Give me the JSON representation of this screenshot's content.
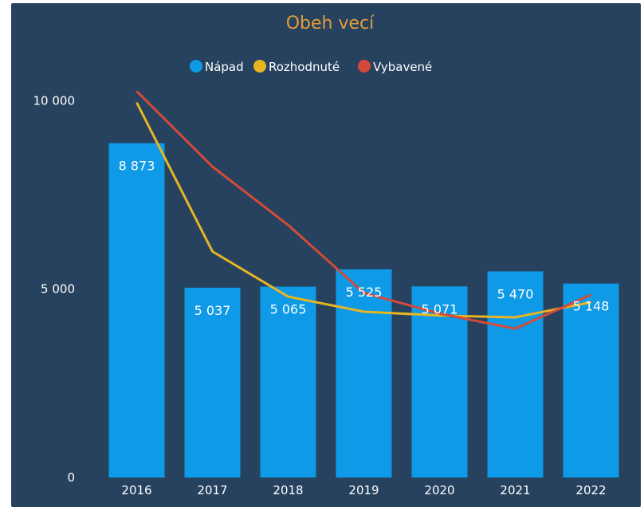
{
  "chart_data": {
    "type": "bar",
    "title": "Obeh vecí",
    "categories": [
      "2016",
      "2017",
      "2018",
      "2019",
      "2020",
      "2021",
      "2022"
    ],
    "y_tick_labels": [
      "0",
      "5 000",
      "10 000"
    ],
    "y_ticks": [
      0,
      5000,
      10000
    ],
    "ylim": [
      0,
      11000
    ],
    "grid": false,
    "legend_position": "top-center",
    "series": [
      {
        "name": "Nápad",
        "type": "bar",
        "color": "#0e9ae6",
        "values": [
          8873,
          5037,
          5065,
          5525,
          5071,
          5470,
          5148
        ],
        "data_labels": [
          "8 873",
          "5 037",
          "5 065",
          "5 525",
          "5 071",
          "5 470",
          "5 148"
        ]
      },
      {
        "name": "Rozhodnuté",
        "type": "line",
        "color": "#e8b522",
        "values": [
          9950,
          6000,
          4800,
          4400,
          4300,
          4250,
          4650
        ]
      },
      {
        "name": "Vybavené",
        "type": "line",
        "color": "#d44a3a",
        "values": [
          10250,
          8250,
          6700,
          4900,
          4350,
          3950,
          4850
        ]
      }
    ]
  }
}
